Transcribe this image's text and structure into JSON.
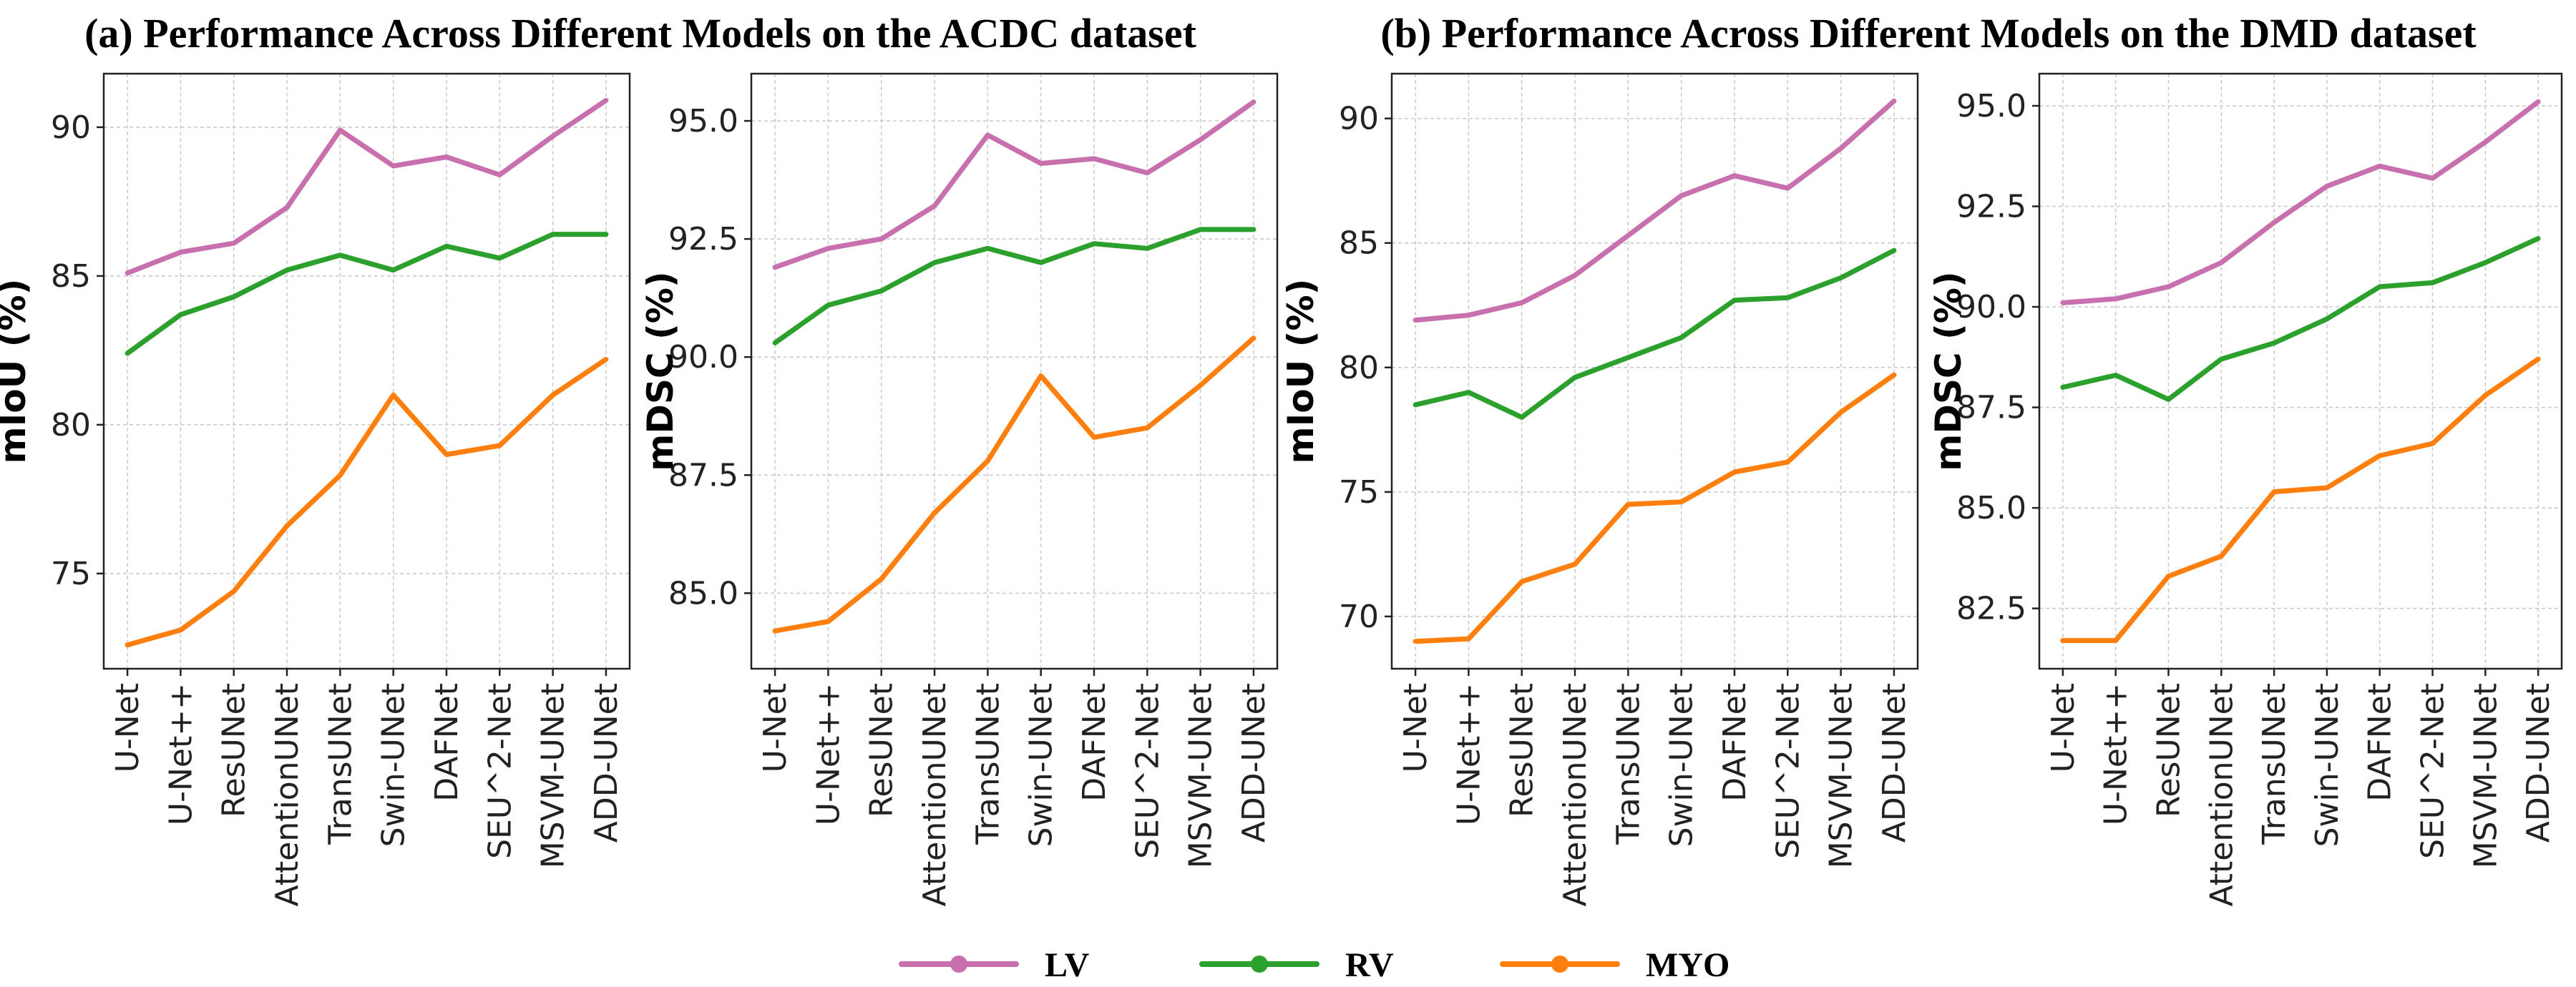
{
  "titles": [
    "(a) Performance Across Different Models on the ACDC dataset",
    "(b) Performance Across Different Models on the DMD dataset"
  ],
  "legend": {
    "position": "bottom-center",
    "items": [
      {
        "label": "LV",
        "color": "#c86fae"
      },
      {
        "label": "RV",
        "color": "#2ca02c"
      },
      {
        "label": "MYO",
        "color": "#ff7f0e"
      }
    ]
  },
  "chart_data": [
    {
      "type": "line",
      "group": "(a) ACDC",
      "ylabel": "mIoU (%)",
      "ylim": [
        71.8,
        91.8
      ],
      "yticks": [
        "75",
        "80",
        "85",
        "90"
      ],
      "grid": true,
      "categories": [
        "U-Net",
        "U-Net++",
        "ResUNet",
        "AttentionUNet",
        "TransUNet",
        "Swin-UNet",
        "DAFNet",
        "SEU^2-Net",
        "MSVM-UNet",
        "ADD-UNet"
      ],
      "series": [
        {
          "name": "LV",
          "color": "#c86fae",
          "values": [
            85.1,
            85.8,
            86.1,
            87.3,
            89.9,
            88.7,
            89.0,
            88.4,
            89.7,
            90.9
          ]
        },
        {
          "name": "RV",
          "color": "#2ca02c",
          "values": [
            82.4,
            83.7,
            84.3,
            85.2,
            85.7,
            85.2,
            86.0,
            85.6,
            86.4,
            86.4
          ]
        },
        {
          "name": "MYO",
          "color": "#ff7f0e",
          "values": [
            72.6,
            73.1,
            74.4,
            76.6,
            78.3,
            81.0,
            79.0,
            79.3,
            81.0,
            82.2
          ]
        }
      ]
    },
    {
      "type": "line",
      "group": "(a) ACDC",
      "ylabel": "mDSC (%)",
      "ylim": [
        83.4,
        96.0
      ],
      "yticks": [
        "85.0",
        "87.5",
        "90.0",
        "92.5",
        "95.0"
      ],
      "grid": true,
      "categories": [
        "U-Net",
        "U-Net++",
        "ResUNet",
        "AttentionUNet",
        "TransUNet",
        "Swin-UNet",
        "DAFNet",
        "SEU^2-Net",
        "MSVM-UNet",
        "ADD-UNet"
      ],
      "series": [
        {
          "name": "LV",
          "color": "#c86fae",
          "values": [
            91.9,
            92.3,
            92.5,
            93.2,
            94.7,
            94.1,
            94.2,
            93.9,
            94.6,
            95.4
          ]
        },
        {
          "name": "RV",
          "color": "#2ca02c",
          "values": [
            90.3,
            91.1,
            91.4,
            92.0,
            92.3,
            92.0,
            92.4,
            92.3,
            92.7,
            92.7
          ]
        },
        {
          "name": "MYO",
          "color": "#ff7f0e",
          "values": [
            84.2,
            84.4,
            85.3,
            86.7,
            87.8,
            89.6,
            88.3,
            88.5,
            89.4,
            90.4
          ]
        }
      ]
    },
    {
      "type": "line",
      "group": "(b) DMD",
      "ylabel": "mIoU (%)",
      "ylim": [
        67.9,
        91.8
      ],
      "yticks": [
        "70",
        "75",
        "80",
        "85",
        "90"
      ],
      "grid": true,
      "categories": [
        "U-Net",
        "U-Net++",
        "ResUNet",
        "AttentionUNet",
        "TransUNet",
        "Swin-UNet",
        "DAFNet",
        "SEU^2-Net",
        "MSVM-UNet",
        "ADD-UNet"
      ],
      "series": [
        {
          "name": "LV",
          "color": "#c86fae",
          "values": [
            81.9,
            82.1,
            82.6,
            83.7,
            85.3,
            86.9,
            87.7,
            87.2,
            88.8,
            90.7
          ]
        },
        {
          "name": "RV",
          "color": "#2ca02c",
          "values": [
            78.5,
            79.0,
            78.0,
            79.6,
            80.4,
            81.2,
            82.7,
            82.8,
            83.6,
            84.7
          ]
        },
        {
          "name": "MYO",
          "color": "#ff7f0e",
          "values": [
            69.0,
            69.1,
            71.4,
            72.1,
            74.5,
            74.6,
            75.8,
            76.2,
            78.2,
            79.7
          ]
        }
      ]
    },
    {
      "type": "line",
      "group": "(b) DMD",
      "ylabel": "mDSC (%)",
      "ylim": [
        81.0,
        95.8
      ],
      "yticks": [
        "82.5",
        "85.0",
        "87.5",
        "90.0",
        "92.5",
        "95.0"
      ],
      "grid": true,
      "categories": [
        "U-Net",
        "U-Net++",
        "ResUNet",
        "AttentionUNet",
        "TransUNet",
        "Swin-UNet",
        "DAFNet",
        "SEU^2-Net",
        "MSVM-UNet",
        "ADD-UNet"
      ],
      "series": [
        {
          "name": "LV",
          "color": "#c86fae",
          "values": [
            90.1,
            90.2,
            90.5,
            91.1,
            92.1,
            93.0,
            93.5,
            93.2,
            94.1,
            95.1
          ]
        },
        {
          "name": "RV",
          "color": "#2ca02c",
          "values": [
            88.0,
            88.3,
            87.7,
            88.7,
            89.1,
            89.7,
            90.5,
            90.6,
            91.1,
            91.7
          ]
        },
        {
          "name": "MYO",
          "color": "#ff7f0e",
          "values": [
            81.7,
            81.7,
            83.3,
            83.8,
            85.4,
            85.5,
            86.3,
            86.6,
            87.8,
            88.7
          ]
        }
      ]
    }
  ]
}
